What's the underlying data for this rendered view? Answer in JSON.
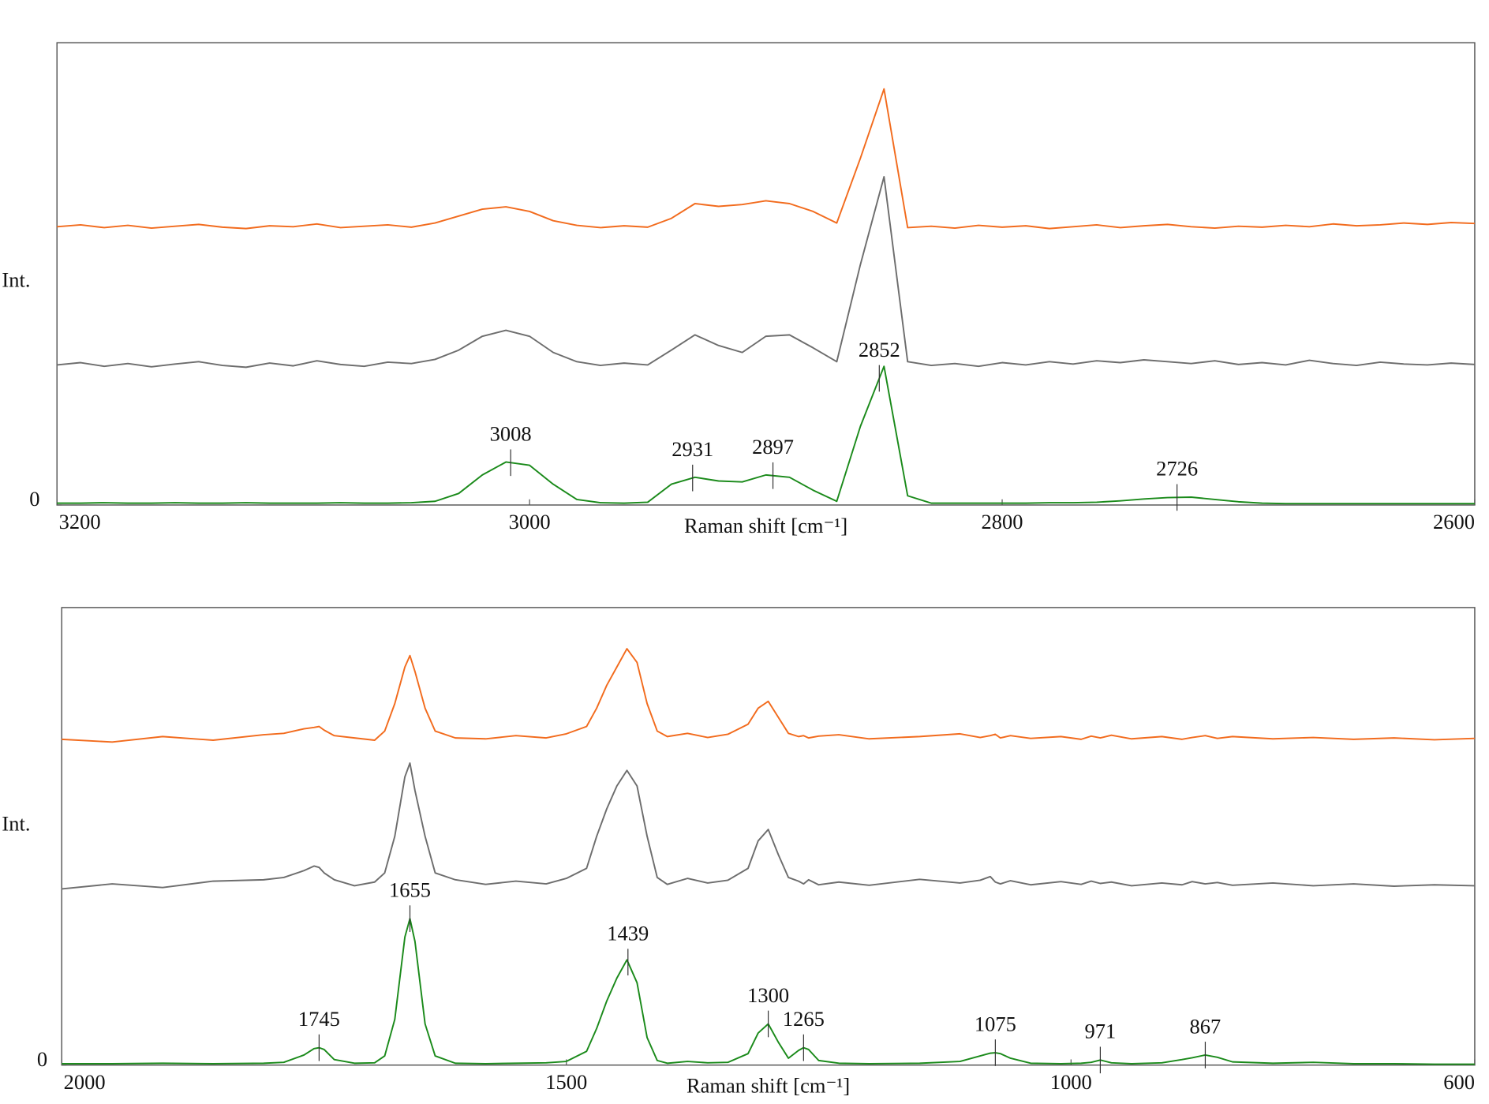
{
  "chart_data": [
    {
      "type": "line",
      "xlabel": "Raman shift [cm⁻¹]",
      "ylabel": "Int.",
      "xlim": [
        3200,
        2600
      ],
      "xticks": [
        3200,
        3000,
        2800,
        2600
      ],
      "ylim": [
        0,
        100
      ],
      "yticks": [
        0
      ],
      "x": [
        3200,
        3190,
        3180,
        3170,
        3160,
        3150,
        3140,
        3130,
        3120,
        3110,
        3100,
        3090,
        3080,
        3070,
        3060,
        3050,
        3040,
        3030,
        3020,
        3010,
        3000,
        2990,
        2980,
        2970,
        2960,
        2950,
        2940,
        2930,
        2920,
        2910,
        2900,
        2890,
        2880,
        2870,
        2860,
        2850,
        2840,
        2830,
        2820,
        2810,
        2800,
        2790,
        2780,
        2770,
        2760,
        2750,
        2740,
        2730,
        2720,
        2710,
        2700,
        2690,
        2680,
        2670,
        2660,
        2650,
        2640,
        2630,
        2620,
        2610,
        2600
      ],
      "series": [
        {
          "color": "#f26b1d",
          "values": [
            60.2,
            60.6,
            60.0,
            60.5,
            59.9,
            60.3,
            60.7,
            60.1,
            59.8,
            60.4,
            60.2,
            60.8,
            60.0,
            60.3,
            60.6,
            60.1,
            61,
            62.5,
            64,
            64.5,
            63.5,
            61.5,
            60.5,
            60.0,
            60.4,
            60.1,
            62,
            65.2,
            64.6,
            65,
            65.8,
            65.2,
            63.5,
            61,
            75,
            90,
            60,
            60.3,
            59.9,
            60.5,
            60.1,
            60.4,
            59.8,
            60.2,
            60.6,
            60.0,
            60.4,
            60.7,
            60.2,
            59.9,
            60.3,
            60.1,
            60.5,
            60.2,
            60.8,
            60.4,
            60.6,
            61,
            60.7,
            61.1,
            60.9
          ]
        },
        {
          "color": "#6d6d6d",
          "values": [
            30.3,
            30.8,
            30.0,
            30.6,
            29.9,
            30.5,
            31.0,
            30.2,
            29.8,
            30.7,
            30.1,
            31.2,
            30.4,
            30.0,
            30.9,
            30.6,
            31.5,
            33.5,
            36.5,
            37.8,
            36.5,
            33,
            31,
            30.2,
            30.7,
            30.3,
            33.5,
            36.8,
            34.5,
            33,
            36.5,
            36.8,
            34,
            31,
            52,
            71,
            31,
            30.2,
            30.6,
            30.0,
            30.8,
            30.3,
            31.0,
            30.5,
            31.2,
            30.8,
            31.4,
            31.0,
            30.6,
            31.2,
            30.4,
            30.8,
            30.3,
            31.3,
            30.6,
            30.2,
            30.9,
            30.5,
            30.3,
            30.7,
            30.4
          ]
        },
        {
          "color": "#1a8a1a",
          "values": [
            0.4,
            0.4,
            0.5,
            0.4,
            0.4,
            0.5,
            0.4,
            0.4,
            0.5,
            0.4,
            0.4,
            0.4,
            0.5,
            0.4,
            0.4,
            0.5,
            0.8,
            2.5,
            6.5,
            9.3,
            8.6,
            4.5,
            1.2,
            0.5,
            0.4,
            0.6,
            4.5,
            6.0,
            5.2,
            5.0,
            6.5,
            6.0,
            3.2,
            0.8,
            17,
            30,
            2,
            0.4,
            0.4,
            0.4,
            0.4,
            0.4,
            0.5,
            0.5,
            0.6,
            0.9,
            1.3,
            1.6,
            1.7,
            1.2,
            0.7,
            0.4,
            0.3,
            0.3,
            0.3,
            0.3,
            0.3,
            0.3,
            0.3,
            0.3,
            0.3
          ]
        }
      ],
      "peaks": [
        3008,
        2931,
        2897,
        2852,
        2726
      ]
    },
    {
      "type": "line",
      "xlabel": "Raman shift [cm⁻¹]",
      "ylabel": "Int.",
      "xlim": [
        2000,
        600
      ],
      "xticks": [
        2000,
        1500,
        1000,
        600
      ],
      "ylim": [
        0,
        100
      ],
      "yticks": [
        0
      ],
      "x": [
        2000,
        1950,
        1900,
        1850,
        1800,
        1780,
        1760,
        1750,
        1745,
        1740,
        1730,
        1710,
        1690,
        1680,
        1670,
        1660,
        1655,
        1650,
        1640,
        1630,
        1610,
        1580,
        1550,
        1520,
        1500,
        1480,
        1470,
        1460,
        1450,
        1440,
        1430,
        1420,
        1410,
        1400,
        1380,
        1360,
        1340,
        1320,
        1310,
        1300,
        1290,
        1280,
        1270,
        1265,
        1260,
        1250,
        1230,
        1200,
        1150,
        1110,
        1090,
        1080,
        1075,
        1070,
        1060,
        1040,
        1010,
        990,
        980,
        971,
        960,
        940,
        910,
        890,
        880,
        867,
        855,
        840,
        800,
        760,
        720,
        680,
        640,
        600
      ],
      "series": [
        {
          "color": "#f26b1d",
          "values": [
            71.2,
            70.6,
            71.8,
            71.0,
            72.2,
            72.5,
            73.5,
            73.8,
            74.0,
            73.2,
            72.0,
            71.5,
            71.0,
            73,
            79,
            87,
            89.5,
            86,
            78,
            73,
            71.5,
            71.3,
            72.0,
            71.5,
            72.4,
            74,
            78,
            83,
            87,
            91,
            88,
            79,
            73,
            71.8,
            72.5,
            71.6,
            72.3,
            74.5,
            78,
            79.5,
            76,
            72.5,
            71.8,
            72.0,
            71.5,
            71.9,
            72.2,
            71.3,
            71.8,
            72.4,
            71.6,
            72.0,
            72.3,
            71.5,
            72.0,
            71.4,
            71.8,
            71.2,
            71.9,
            71.5,
            72.1,
            71.3,
            71.8,
            71.2,
            71.6,
            72.0,
            71.4,
            71.8,
            71.3,
            71.6,
            71.2,
            71.5,
            71.1,
            71.4
          ]
        },
        {
          "color": "#6d6d6d",
          "values": [
            38.5,
            39.6,
            38.8,
            40.2,
            40.5,
            41,
            42.5,
            43.5,
            43.2,
            42,
            40.5,
            39.2,
            40,
            42,
            50,
            63,
            66,
            60,
            50,
            42,
            40.5,
            39.5,
            40.2,
            39.6,
            40.8,
            43,
            50,
            56,
            61,
            64.4,
            61,
            50,
            41,
            39.5,
            40.8,
            39.8,
            40.4,
            43,
            49,
            51.5,
            46,
            41,
            40.2,
            39.6,
            40.5,
            39.4,
            40.0,
            39.3,
            40.6,
            39.8,
            40.4,
            41.2,
            40.0,
            39.6,
            40.3,
            39.4,
            40.1,
            39.5,
            40.2,
            39.7,
            40.0,
            39.2,
            39.8,
            39.4,
            40.1,
            39.6,
            39.9,
            39.3,
            39.8,
            39.2,
            39.6,
            39.1,
            39.4,
            39.2
          ]
        },
        {
          "color": "#1a8a1a",
          "values": [
            0.3,
            0.3,
            0.4,
            0.3,
            0.4,
            0.6,
            2.2,
            3.6,
            3.8,
            3.4,
            1.2,
            0.4,
            0.5,
            2.0,
            10,
            28,
            32,
            27,
            9,
            2,
            0.4,
            0.3,
            0.4,
            0.5,
            0.8,
            3,
            8,
            14,
            19,
            23,
            18,
            6,
            1,
            0.4,
            0.8,
            0.5,
            0.6,
            2.5,
            7,
            9,
            5,
            1.5,
            3.2,
            3.8,
            3.4,
            1,
            0.4,
            0.3,
            0.4,
            0.8,
            2.0,
            2.6,
            2.7,
            2.5,
            1.5,
            0.4,
            0.3,
            0.4,
            0.6,
            1.1,
            0.5,
            0.3,
            0.5,
            1.2,
            1.6,
            2.2,
            1.7,
            0.7,
            0.4,
            0.6,
            0.3,
            0.3,
            0.2,
            0.2
          ]
        }
      ],
      "peaks": [
        1745,
        1655,
        1439,
        1300,
        1265,
        1075,
        971,
        867
      ]
    }
  ]
}
